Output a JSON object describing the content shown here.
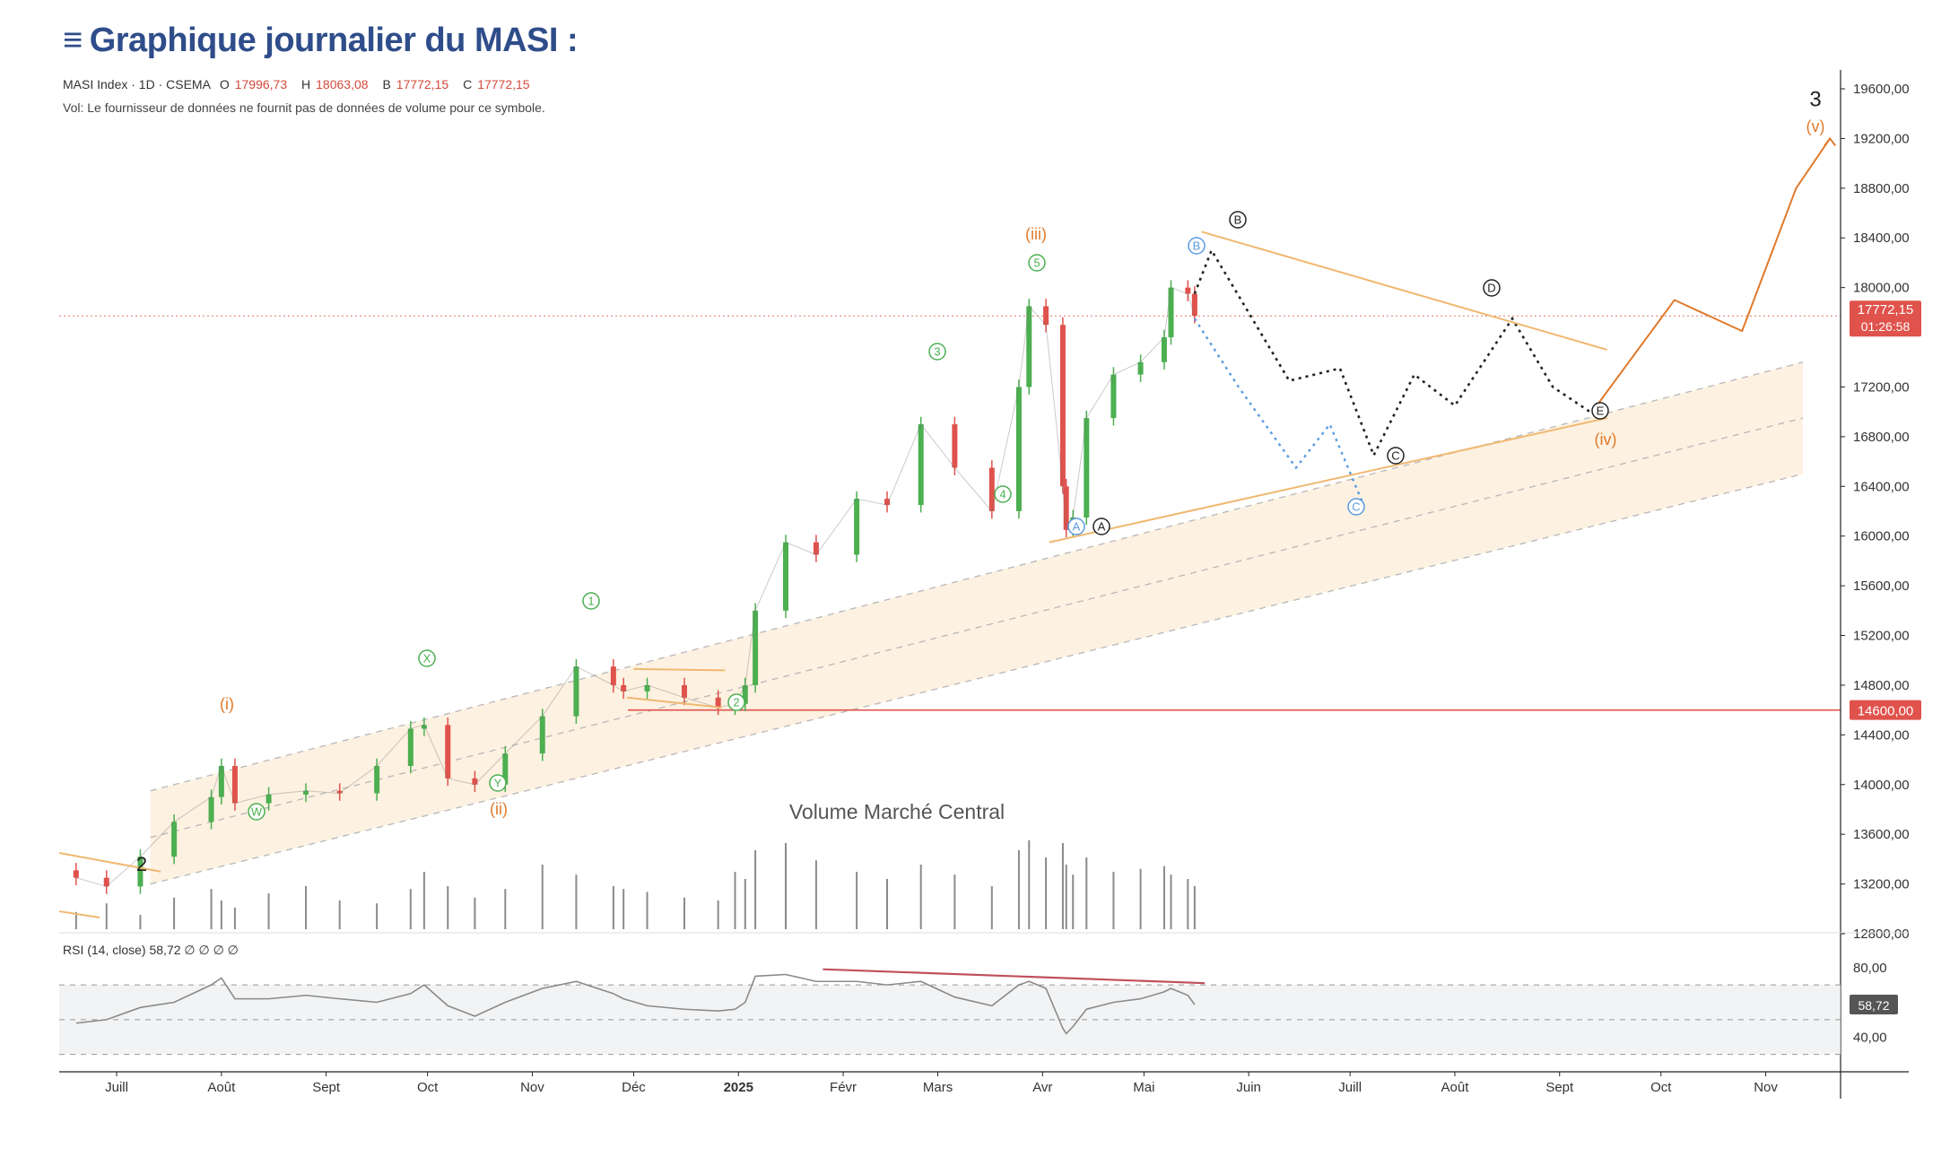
{
  "page": {
    "title": "Graphique journalier du MASI :",
    "title_icon": "menu-icon"
  },
  "symbol_info": {
    "line": "MASI Index · 1D · CSEMA",
    "open_label": "O",
    "open": "17996,73",
    "high_label": "H",
    "high": "18063,08",
    "low_label": "B",
    "low": "17772,15",
    "close_label": "C",
    "close": "17772,15",
    "volume_note": "Vol: Le fournisseur de données ne fournit pas de données de volume pour ce symbole."
  },
  "price_axis": {
    "ticks": [
      "19600,00",
      "19200,00",
      "18800,00",
      "18400,00",
      "18000,00",
      "17200,00",
      "16800,00",
      "16400,00",
      "16000,00",
      "15600,00",
      "15200,00",
      "14800,00",
      "14400,00",
      "14000,00",
      "13600,00",
      "13200,00",
      "12800,00"
    ],
    "last_price_label": "17772,15",
    "countdown_label": "01:26:58",
    "support_label": "14600,00"
  },
  "rsi": {
    "label": "RSI (14, close)",
    "value": "58,72",
    "extra": "∅ ∅ ∅ ∅",
    "ticks": [
      "80,00",
      "40,00"
    ],
    "value_badge": "58,72"
  },
  "volume_panel_title": "Volume Marché Central",
  "time_axis": [
    "Juill",
    "Août",
    "Sept",
    "Oct",
    "Nov",
    "Déc",
    "2025",
    "Févr",
    "Mars",
    "Avr",
    "Mai",
    "Juin",
    "Juill",
    "Août",
    "Sept",
    "Oct",
    "Nov"
  ],
  "wave_labels": {
    "minor_2": "2",
    "minor_3": "3",
    "i": "(i)",
    "ii": "(ii)",
    "iii": "(iii)",
    "iv": "(iv)",
    "v": "(v)",
    "W": "W",
    "X": "X",
    "Y": "Y",
    "g1": "1",
    "g2": "2",
    "g3": "3",
    "g4": "4",
    "g5": "5",
    "A_blue": "A",
    "B_blue": "B",
    "C_blue": "C",
    "A_black": "A",
    "B_black": "B",
    "C_black": "C",
    "D_black": "D",
    "E_black": "E"
  },
  "colors": {
    "title": "#2f4d8a",
    "up_candle": "#4caf50",
    "down_candle": "#e0524c",
    "orange_wave": "#e07a2b",
    "green_wave": "#4caf50",
    "blue_wave": "#5b9be0",
    "support_line": "#e0524c",
    "channel_fill": "#fbe5c8",
    "rsi_line": "#8a8a8a",
    "last_price_badge": "#e0524c"
  },
  "chart_data": {
    "type": "candlestick",
    "title": "Graphique journalier du MASI :",
    "xlabel": "",
    "ylabel": "",
    "ylim": [
      12500,
      19900
    ],
    "x": [
      "2024-06-19",
      "2024-06-28",
      "2024-07-08",
      "2024-07-18",
      "2024-07-29",
      "2024-08-01",
      "2024-08-05",
      "2024-08-15",
      "2024-08-26",
      "2024-09-05",
      "2024-09-16",
      "2024-09-26",
      "2024-09-30",
      "2024-10-07",
      "2024-10-15",
      "2024-10-24",
      "2024-11-04",
      "2024-11-14",
      "2024-11-25",
      "2024-11-28",
      "2024-12-05",
      "2024-12-16",
      "2024-12-26",
      "2024-12-31",
      "2025-01-03",
      "2025-01-06",
      "2025-01-15",
      "2025-01-24",
      "2025-02-05",
      "2025-02-14",
      "2025-02-24",
      "2025-03-06",
      "2025-03-17",
      "2025-03-25",
      "2025-03-28",
      "2025-04-02",
      "2025-04-07",
      "2025-04-08",
      "2025-04-10",
      "2025-04-14",
      "2025-04-22",
      "2025-04-30",
      "2025-05-07",
      "2025-05-09",
      "2025-05-14",
      "2025-05-16"
    ],
    "series": [
      {
        "name": "MASI Index",
        "values": [
          13250,
          13180,
          13420,
          13700,
          13900,
          14150,
          13850,
          13920,
          13950,
          13930,
          14150,
          14450,
          14480,
          14050,
          14000,
          14250,
          14550,
          14950,
          14800,
          14750,
          14800,
          14700,
          14620,
          14650,
          14800,
          15400,
          15950,
          15850,
          16300,
          16250,
          16900,
          16550,
          16200,
          17200,
          17850,
          17700,
          16400,
          16050,
          16150,
          16950,
          17300,
          17400,
          17600,
          18000,
          17950,
          17772.15
        ]
      }
    ],
    "horizontal_lines": [
      {
        "value": 14600,
        "label": "14600,00"
      },
      {
        "value": 17772.15,
        "label": "17772,15"
      }
    ],
    "projection_black_dotted": {
      "x": [
        "2025-05-16",
        "2025-05-21",
        "2025-06-13",
        "2025-06-28",
        "2025-07-08",
        "2025-07-20",
        "2025-08-01",
        "2025-08-18",
        "2025-08-30",
        "2025-09-10"
      ],
      "y": [
        17950,
        18300,
        17250,
        17350,
        16650,
        17300,
        17050,
        17750,
        17200,
        17000
      ]
    },
    "projection_blue_dotted": {
      "x": [
        "2025-05-16",
        "2025-05-29",
        "2025-06-15",
        "2025-06-25",
        "2025-07-05"
      ],
      "y": [
        17750,
        17200,
        16550,
        16900,
        16250
      ]
    },
    "projection_orange": {
      "x": [
        "2025-09-12",
        "2025-10-05",
        "2025-10-25",
        "2025-11-10",
        "2025-11-20"
      ],
      "y": [
        17050,
        17900,
        17650,
        18800,
        19200
      ]
    },
    "rsi_series": {
      "ylim": [
        20,
        100
      ],
      "overbought": 70,
      "oversold": 30,
      "values": [
        48,
        50,
        57,
        60,
        70,
        74,
        62,
        62,
        64,
        62,
        60,
        65,
        70,
        58,
        52,
        60,
        68,
        72,
        65,
        62,
        58,
        56,
        55,
        56,
        60,
        75,
        76,
        72,
        72,
        70,
        72,
        63,
        58,
        70,
        72,
        68,
        45,
        42,
        46,
        56,
        60,
        62,
        66,
        68,
        64,
        58.72
      ]
    },
    "volume_series": {
      "values": [
        12,
        18,
        10,
        22,
        28,
        20,
        15,
        25,
        30,
        20,
        18,
        28,
        40,
        30,
        22,
        28,
        45,
        38,
        30,
        28,
        26,
        22,
        20,
        40,
        35,
        55,
        60,
        48,
        40,
        35,
        45,
        38,
        30,
        55,
        62,
        50,
        60,
        45,
        38,
        50,
        40,
        42,
        44,
        38,
        35,
        30
      ]
    }
  }
}
